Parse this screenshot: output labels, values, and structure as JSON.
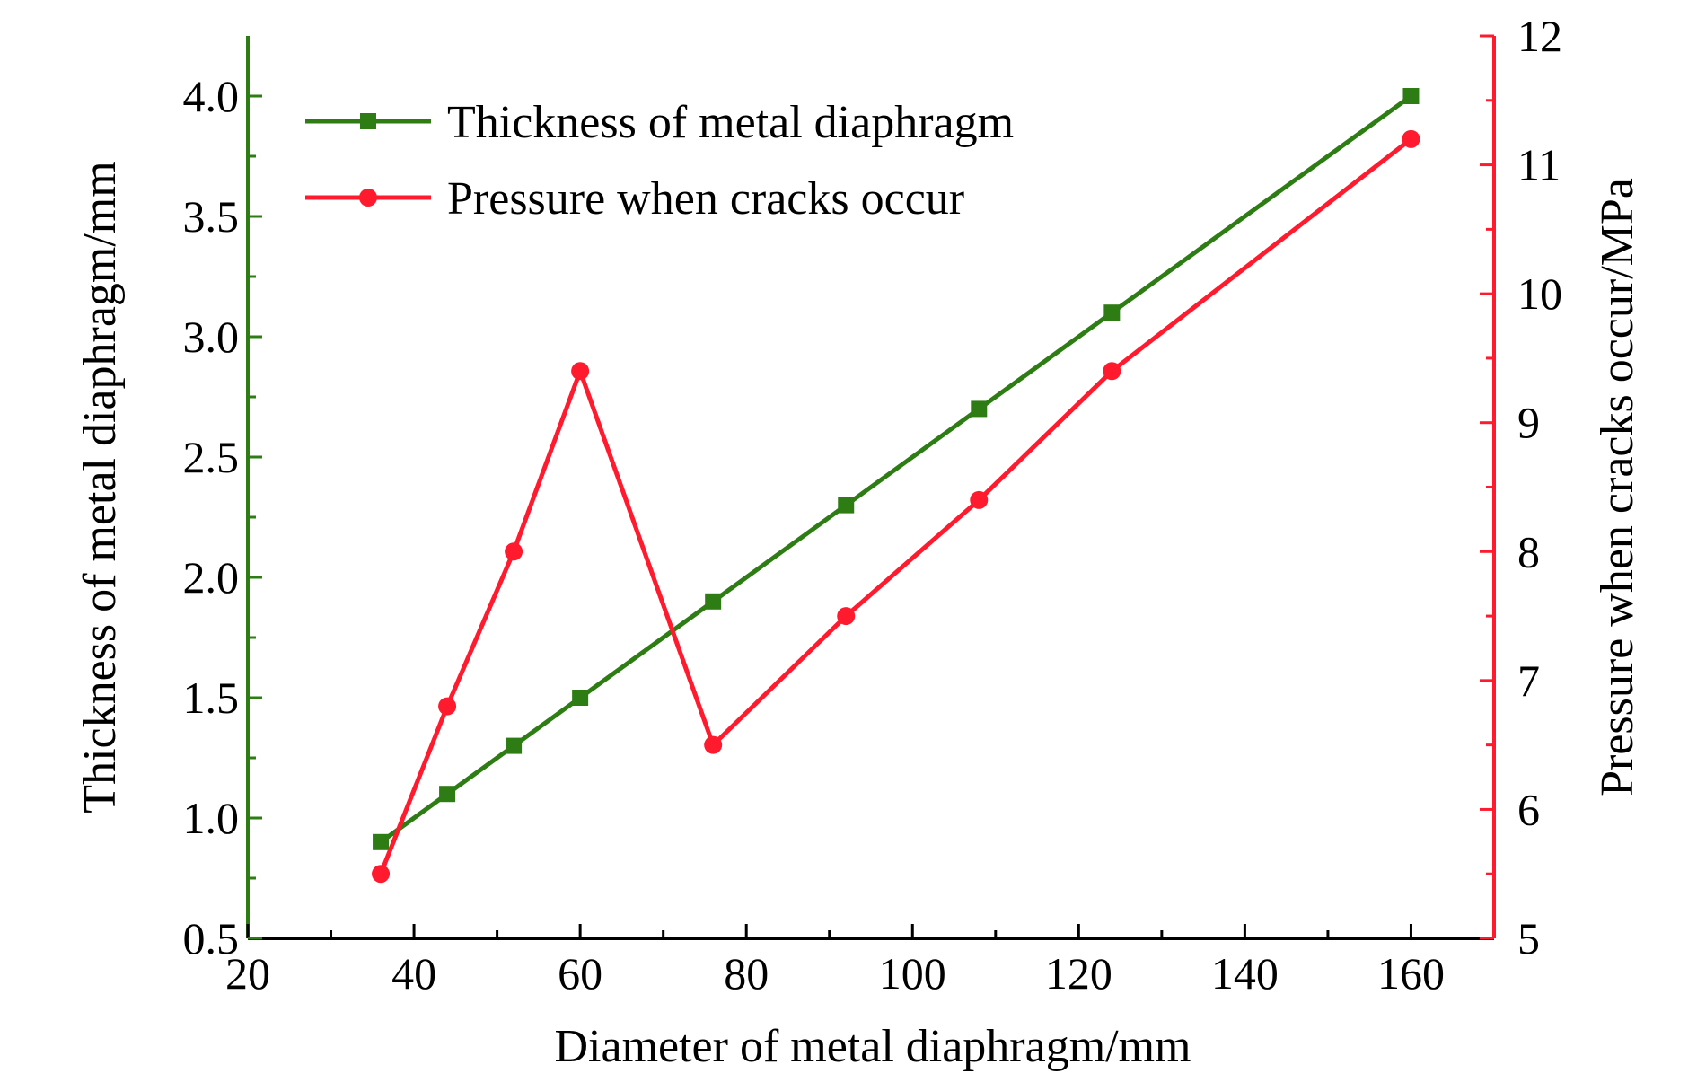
{
  "chart_data": {
    "type": "line",
    "xlabel": "Diameter of metal diaphragm/mm",
    "ylabel_left": "Thickness of metal diaphragm/mm",
    "ylabel_right": "Pressure when cracks occur/MPa",
    "xlim": [
      20,
      170
    ],
    "xticks": [
      "20",
      "40",
      "60",
      "80",
      "100",
      "120",
      "140",
      "160"
    ],
    "ylim_left": [
      0.5,
      4.25
    ],
    "yticks_left": [
      "0.5",
      "1.0",
      "1.5",
      "2.0",
      "2.5",
      "3.0",
      "3.5",
      "4.0"
    ],
    "ylim_right": [
      5,
      12
    ],
    "yticks_right": [
      "5",
      "6",
      "7",
      "8",
      "9",
      "10",
      "11",
      "12"
    ],
    "grid": false,
    "legend_position": "top-left",
    "series": [
      {
        "name": "Thickness of metal diaphragm",
        "axis": "left",
        "color": "#2e7d14",
        "marker": "square",
        "x": [
          36,
          44,
          52,
          60,
          76,
          92,
          108,
          124,
          160
        ],
        "y": [
          0.9,
          1.1,
          1.3,
          1.5,
          1.9,
          2.3,
          2.7,
          3.1,
          4.0
        ]
      },
      {
        "name": "Pressure when cracks occur",
        "axis": "right",
        "color": "#ff1a2e",
        "marker": "circle",
        "x": [
          36,
          44,
          52,
          60,
          76,
          92,
          108,
          124,
          160
        ],
        "y": [
          5.5,
          6.8,
          8.0,
          9.4,
          6.5,
          7.5,
          8.4,
          9.4,
          11.2
        ]
      }
    ],
    "colors": {
      "left_axis": "#2e7d14",
      "right_axis": "#ff1a2e",
      "bottom_axis": "#000000"
    }
  }
}
